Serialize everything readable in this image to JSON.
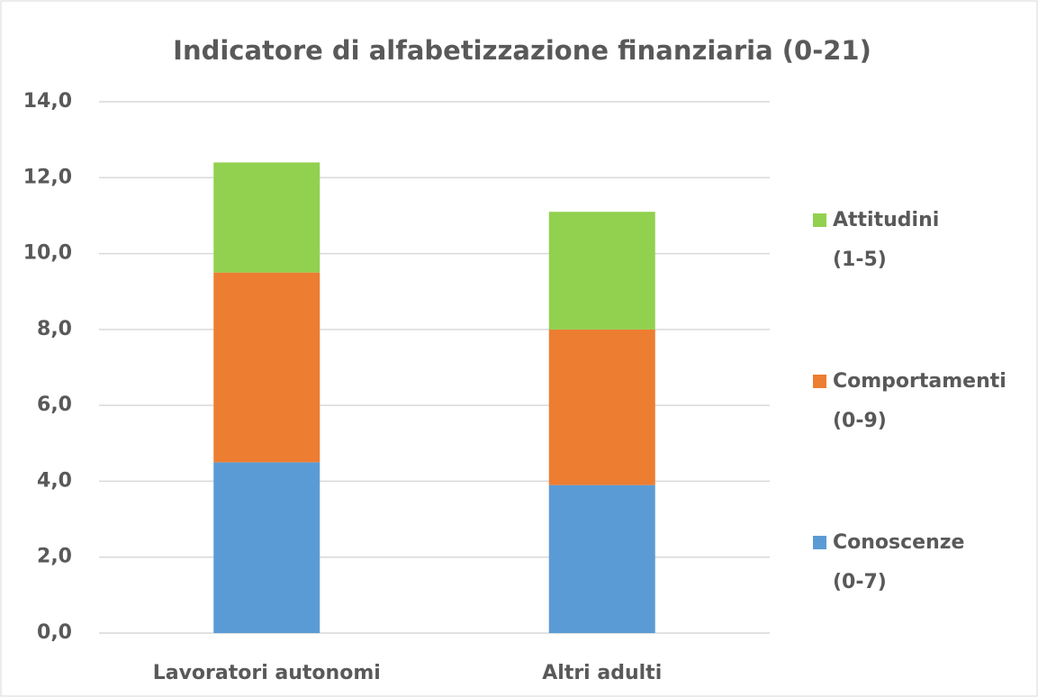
{
  "chart_data": {
    "type": "stacked-bar",
    "title": "Indicatore di alfabetizzazione finanziaria (0-21)",
    "categories": [
      "Lavoratori autonomi",
      "Altri adulti"
    ],
    "series": [
      {
        "name": "Conoscenze (0-7)",
        "color": "#5b9bd5",
        "values": [
          4.5,
          3.9
        ]
      },
      {
        "name": "Comportamenti (0-9)",
        "color": "#ed7d31",
        "values": [
          5.0,
          4.1
        ]
      },
      {
        "name": "Attitudini (1-5)",
        "color": "#92d050",
        "values": [
          2.9,
          3.1
        ]
      }
    ],
    "ylim": [
      0,
      14
    ],
    "yticks": [
      {
        "value": 0,
        "label": "0,0"
      },
      {
        "value": 2,
        "label": "2,0"
      },
      {
        "value": 4,
        "label": "4,0"
      },
      {
        "value": 6,
        "label": "6,0"
      },
      {
        "value": 8,
        "label": "8,0"
      },
      {
        "value": 10,
        "label": "10,0"
      },
      {
        "value": 12,
        "label": "12,0"
      },
      {
        "value": 14,
        "label": "14,0"
      }
    ],
    "grid": true,
    "legend": "right"
  }
}
